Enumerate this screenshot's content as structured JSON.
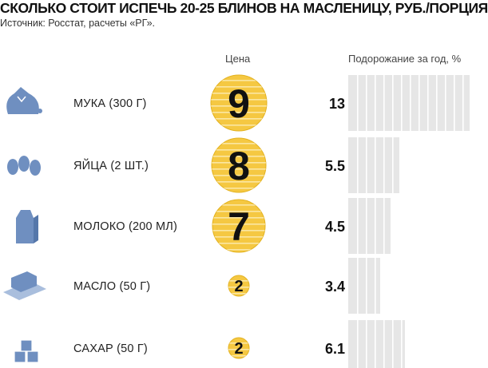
{
  "header": {
    "title": "СКОЛЬКО СТОИТ ИСПЕЧЬ 20-25 БЛИНОВ НА МАСЛЕНИЦУ, РУБ./ПОРЦИЯ",
    "source": "Источник: Росстат, расчеты «РГ».",
    "price_column": "Цена",
    "rise_column": "Подорожание за год, %"
  },
  "colors": {
    "coin": "#f5c842",
    "coin_stripe": "#fbe7a3",
    "bar": "#e6e6e6",
    "bar_stripe": "#ffffff",
    "icon": "#6f8fc0"
  },
  "chart_data": {
    "type": "bar",
    "categories": [
      "МУКА (300 Г)",
      "ЯЙЦА (2 ШТ.)",
      "МОЛОКО (200 МЛ)",
      "МАСЛО (50 Г)",
      "САХАР (50 Г)"
    ],
    "icons": [
      "flour-bag-icon",
      "eggs-icon",
      "milk-carton-icon",
      "butter-icon",
      "sugar-cubes-icon"
    ],
    "series": [
      {
        "name": "Цена",
        "values": [
          9,
          8,
          7,
          2,
          2
        ]
      },
      {
        "name": "Подорожание за год, %",
        "values": [
          13,
          5.5,
          4.5,
          3.4,
          6.1
        ]
      }
    ],
    "title": "СКОЛЬКО СТОИТ ИСПЕЧЬ 20-25 БЛИНОВ НА МАСЛЕНИЦУ, РУБ./ПОРЦИЯ",
    "xlabel": "",
    "ylabel": "",
    "ylim": [
      0,
      13
    ]
  }
}
